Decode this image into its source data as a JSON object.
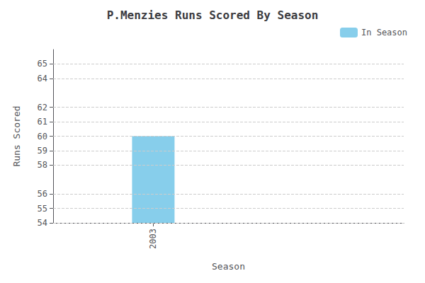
{
  "chart_data": {
    "type": "bar",
    "title": "P.Menzies Runs Scored By Season",
    "xlabel": "Season",
    "ylabel": "Runs Scored",
    "x": [
      2003
    ],
    "series": [
      {
        "name": "In Season",
        "color": "#87CEEB",
        "values": [
          60
        ]
      }
    ],
    "xlim": [
      2002.0,
      2005.5
    ],
    "xticks": [
      2003
    ],
    "ylim": [
      54,
      66
    ],
    "yticks": [
      54,
      55,
      56,
      58,
      59,
      60,
      61,
      62,
      64,
      65
    ],
    "grid": true,
    "legend": "upper right"
  }
}
